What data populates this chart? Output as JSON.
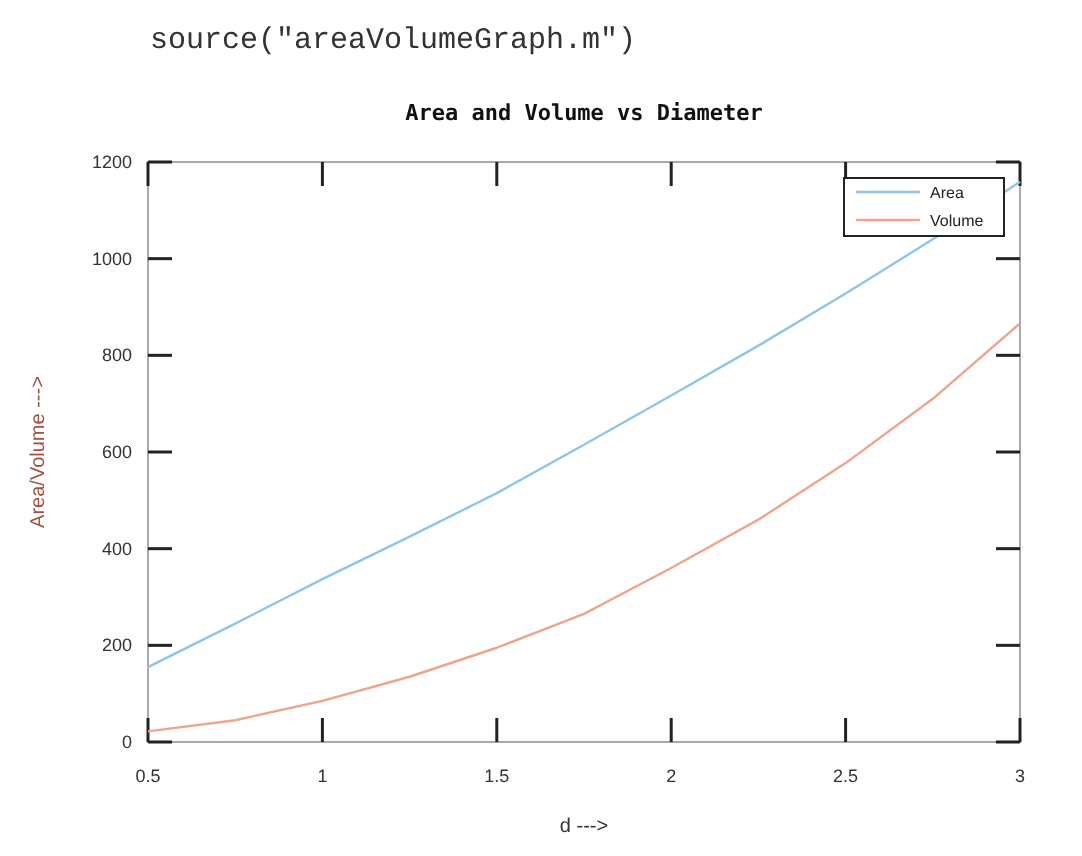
{
  "chart_data": {
    "type": "line",
    "title": "Area and Volume vs Diameter",
    "xlabel": "d --->",
    "ylabel": "Area/Volume --->",
    "annotations": [
      "source(\"areaVolumeGraph.m\")"
    ],
    "x": [
      0.5,
      0.75,
      1,
      1.25,
      1.5,
      1.75,
      2,
      2.25,
      2.5,
      2.75,
      3
    ],
    "series": [
      {
        "name": "Area",
        "color": "#8ec5e8",
        "values": [
          155,
          245,
          337,
          425,
          515,
          615,
          717,
          820,
          928,
          1040,
          1159
        ]
      },
      {
        "name": "Volume",
        "color": "#f0a58a",
        "values": [
          22,
          45,
          85,
          135,
          195,
          265,
          360,
          460,
          577,
          710,
          866
        ]
      }
    ],
    "xlim": [
      0.5,
      3
    ],
    "xticks": [
      0.5,
      1,
      1.5,
      2,
      2.5,
      3
    ],
    "ylim": [
      0,
      1200
    ],
    "yticks": [
      0,
      200,
      400,
      600,
      800,
      1000,
      1200
    ],
    "grid": false,
    "legend": "top right",
    "line_style": "solid"
  }
}
